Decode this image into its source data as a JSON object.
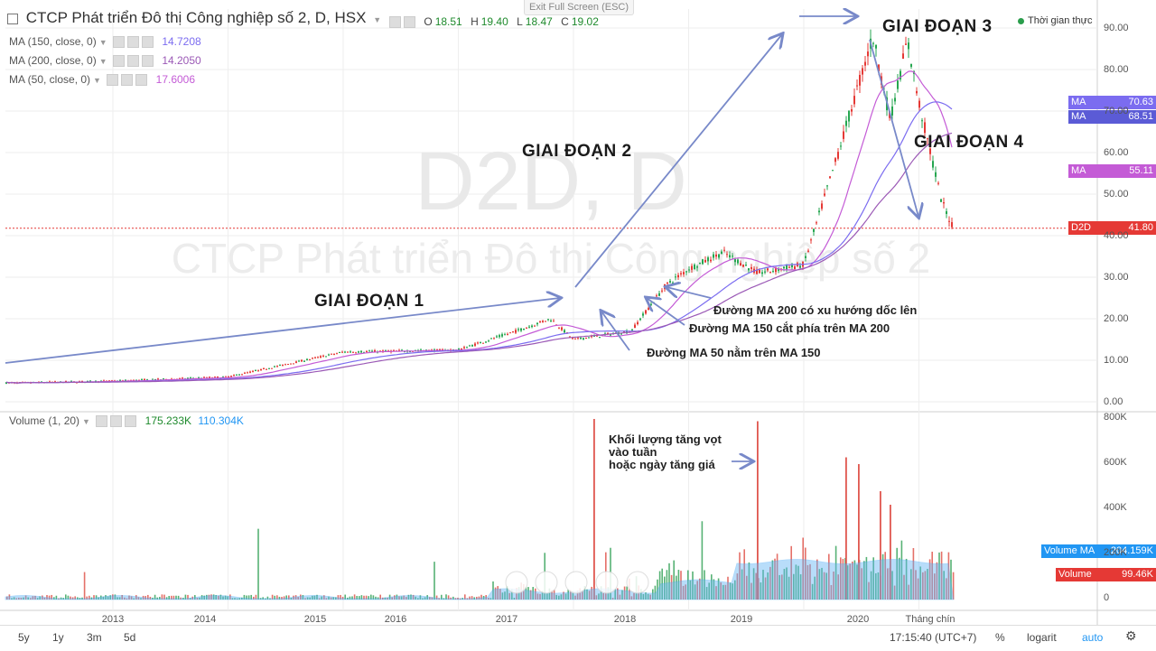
{
  "header": {
    "symbol_title": "CTCP Phát triển Đô thị Công nghiệp số 2, D, HSX",
    "ohlc": [
      {
        "k": "O",
        "v": "18.51"
      },
      {
        "k": "H",
        "v": "19.40"
      },
      {
        "k": "L",
        "v": "18.47"
      },
      {
        "k": "C",
        "v": "19.02"
      }
    ],
    "exit_fullscreen": "Exit Full Screen (ESC)",
    "realtime": "Thời gian thực"
  },
  "indicators": [
    {
      "label": "MA (150, close, 0)",
      "value": "14.7208",
      "color": "#7b6cf0"
    },
    {
      "label": "MA (200, close, 0)",
      "value": "14.2050",
      "color": "#9b59b6"
    },
    {
      "label": "MA (50, close, 0)",
      "value": "17.6006",
      "color": "#c45bd6"
    }
  ],
  "watermark": {
    "line1": "D2D, D",
    "line2": "CTCP Phát triển Đô thị Công nghiệp số 2"
  },
  "annotations": {
    "stage1": "GIAI ĐOẠN 1",
    "stage2": "GIAI ĐOẠN 2",
    "stage3": "GIAI ĐOẠN 3",
    "stage4": "GIAI ĐOẠN 4",
    "ma200_up": "Đường MA 200 có xu hướng dốc lên",
    "ma150_above": "Đường MA 150 cắt phía trên MA 200",
    "ma50_above": "Đường MA 50 nằm trên MA 150",
    "volume_note_1": "Khối lượng tăng vọt",
    "volume_note_2": "vào tuần",
    "volume_note_3": "hoặc ngày tăng giá"
  },
  "price_tags": [
    {
      "label": "MA",
      "value": "70.63",
      "color": "#7b6cf0"
    },
    {
      "label": "MA",
      "value": "68.51",
      "color": "#5b5bd6"
    },
    {
      "label": "MA",
      "value": "55.11",
      "color": "#c45bd6"
    },
    {
      "label": "D2D",
      "value": "41.80",
      "color": "#e53935"
    }
  ],
  "volume": {
    "header_label": "Volume (1, 20)",
    "v1": "175.233K",
    "v2": "110.304K",
    "tag_ma_label": "Volume MA",
    "tag_ma_value": "204.159K",
    "tag_vol_label": "Volume",
    "tag_vol_value": "99.46K"
  },
  "bottom_bar": {
    "ranges": [
      "5y",
      "1y",
      "3m",
      "5d"
    ],
    "time": "17:15:40 (UTC+7)",
    "percent": "%",
    "log": "logarit",
    "auto": "auto"
  },
  "chart_data": {
    "type": "candlestick",
    "title": "CTCP Phát triển Đô thị Công nghiệp số 2, D, HSX",
    "x_ticks": [
      "2013",
      "2014",
      "2015",
      "2016",
      "2017",
      "2018",
      "2019",
      "2020",
      "Tháng chín"
    ],
    "y_ticks": [
      "0.00",
      "10.00",
      "20.00",
      "30.00",
      "40.00",
      "50.00",
      "60.00",
      "70.00",
      "80.00",
      "90.00"
    ],
    "ylim": [
      0,
      92
    ],
    "volume_ticks": [
      "0",
      "200K",
      "400K",
      "600K",
      "800K"
    ],
    "price_path_approx": [
      {
        "x": "2012",
        "y": 4.5
      },
      {
        "x": "2013",
        "y": 5
      },
      {
        "x": "2014",
        "y": 6
      },
      {
        "x": "2014.5",
        "y": 9
      },
      {
        "x": "2015",
        "y": 12
      },
      {
        "x": "2016",
        "y": 12.5
      },
      {
        "x": "2016.5",
        "y": 17
      },
      {
        "x": "2016.8",
        "y": 20
      },
      {
        "x": "2017",
        "y": 15
      },
      {
        "x": "2017.5",
        "y": 17
      },
      {
        "x": "2017.8",
        "y": 28
      },
      {
        "x": "2018",
        "y": 32
      },
      {
        "x": "2018.3",
        "y": 36
      },
      {
        "x": "2018.6",
        "y": 31
      },
      {
        "x": "2019",
        "y": 33
      },
      {
        "x": "2019.3",
        "y": 60
      },
      {
        "x": "2019.6",
        "y": 88
      },
      {
        "x": "2019.75",
        "y": 68
      },
      {
        "x": "2019.9",
        "y": 87
      },
      {
        "x": "2020",
        "y": 72
      },
      {
        "x": "2020.2",
        "y": 48
      },
      {
        "x": "2020.3",
        "y": 41.8
      }
    ],
    "series": [
      {
        "name": "MA (50, close, 0)",
        "last": 55.11
      },
      {
        "name": "MA (150, close, 0)",
        "last": 70.63
      },
      {
        "name": "MA (200, close, 0)",
        "last": 68.51
      }
    ]
  }
}
